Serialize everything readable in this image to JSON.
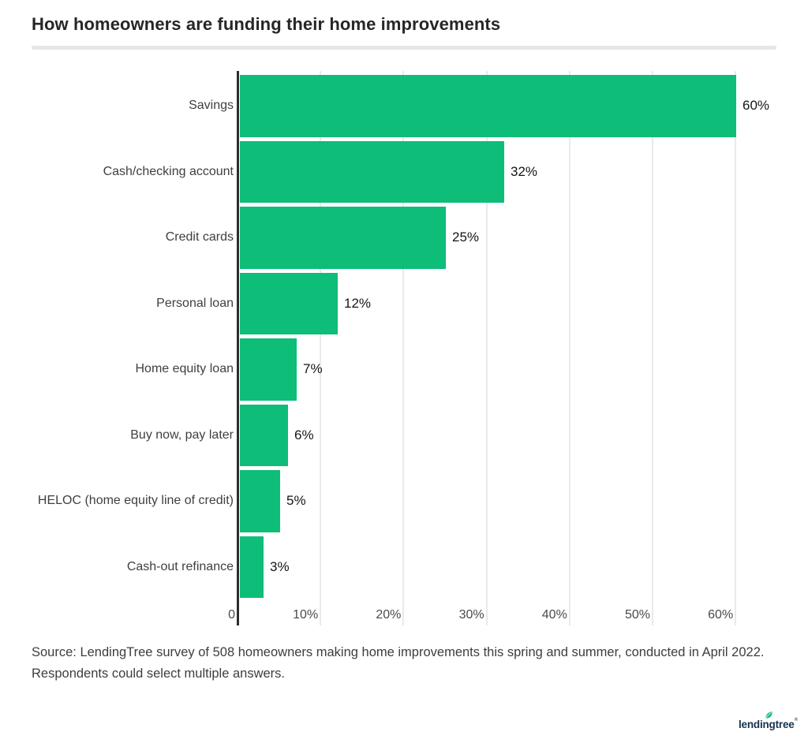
{
  "header": {
    "title": "How homeowners are funding their home improvements"
  },
  "chart_data": {
    "type": "bar",
    "orientation": "horizontal",
    "title": "How homeowners are funding their home improvements",
    "categories": [
      "Savings",
      "Cash/checking account",
      "Credit cards",
      "Personal loan",
      "Home equity loan",
      "Buy now, pay later",
      "HELOC (home equity line of credit)",
      "Cash-out refinance"
    ],
    "values": [
      60,
      32,
      25,
      12,
      7,
      6,
      5,
      3
    ],
    "value_labels": [
      "60%",
      "32%",
      "25%",
      "12%",
      "7%",
      "6%",
      "5%",
      "3%"
    ],
    "x_ticks": [
      {
        "value": 0,
        "label": "0"
      },
      {
        "value": 10,
        "label": "10%"
      },
      {
        "value": 20,
        "label": "20%"
      },
      {
        "value": 30,
        "label": "30%"
      },
      {
        "value": 40,
        "label": "40%"
      },
      {
        "value": 50,
        "label": "50%"
      },
      {
        "value": 60,
        "label": "60%"
      }
    ],
    "xlim": [
      0,
      67
    ],
    "xlabel": "",
    "ylabel": "",
    "grid": "vertical-light",
    "legend": "none",
    "bar_color": "#0ebd78"
  },
  "footer": {
    "lines": [
      "Source: LendingTree survey of 508 homeowners making home improvements this spring and summer, conducted in April 2022.",
      "Respondents could select multiple answers."
    ]
  },
  "branding": {
    "logo_text": "lendingtree",
    "registered_mark": "®"
  },
  "colors": {
    "background": "#ffffff",
    "bar": "#0ebd78",
    "axis_line": "#2d2d2d",
    "gridline": "#e9e9e9",
    "title_text": "#262626",
    "category_text": "#3f3f3f",
    "value_text": "#151515",
    "tick_text": "#4a4a4a",
    "footer_text": "#3d3d3d",
    "separator": "#e6e6e6",
    "logo_navy": "#16324e",
    "logo_leaf": "#0ebd78"
  }
}
